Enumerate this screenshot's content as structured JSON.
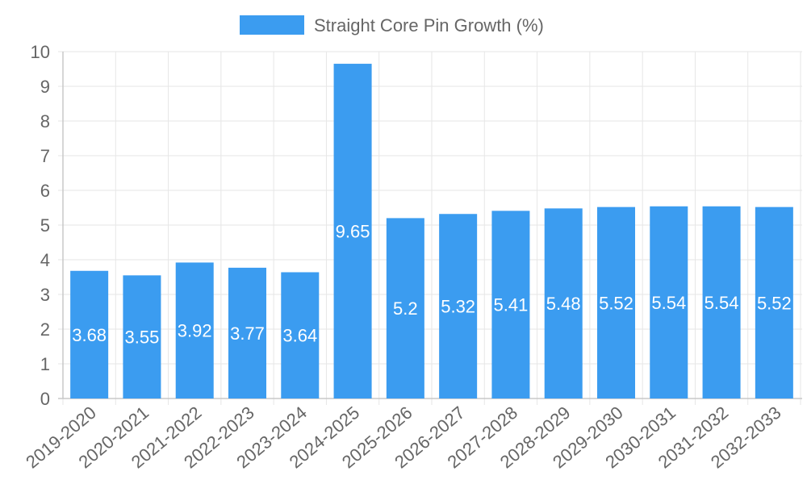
{
  "chart_data": {
    "type": "bar",
    "categories": [
      "2019-2020",
      "2020-2021",
      "2021-2022",
      "2022-2023",
      "2023-2024",
      "2024-2025",
      "2025-2026",
      "2026-2027",
      "2027-2028",
      "2028-2029",
      "2029-2030",
      "2030-2031",
      "2031-2032",
      "2032-2033"
    ],
    "series": [
      {
        "name": "Straight Core Pin Growth (%)",
        "color": "#3b9cf0",
        "values": [
          3.68,
          3.55,
          3.92,
          3.77,
          3.64,
          9.65,
          5.2,
          5.32,
          5.41,
          5.48,
          5.52,
          5.54,
          5.54,
          5.52
        ]
      }
    ],
    "data_labels": [
      "3.68",
      "3.55",
      "3.92",
      "3.77",
      "3.64",
      "9.65",
      "5.2",
      "5.32",
      "5.41",
      "5.48",
      "5.52",
      "5.54",
      "5.54",
      "5.52"
    ],
    "y_ticks": [
      "0",
      "1",
      "2",
      "3",
      "4",
      "5",
      "6",
      "7",
      "8",
      "9",
      "10"
    ],
    "ylim": [
      0,
      10
    ],
    "grid": true,
    "legend_position": "top-center"
  }
}
